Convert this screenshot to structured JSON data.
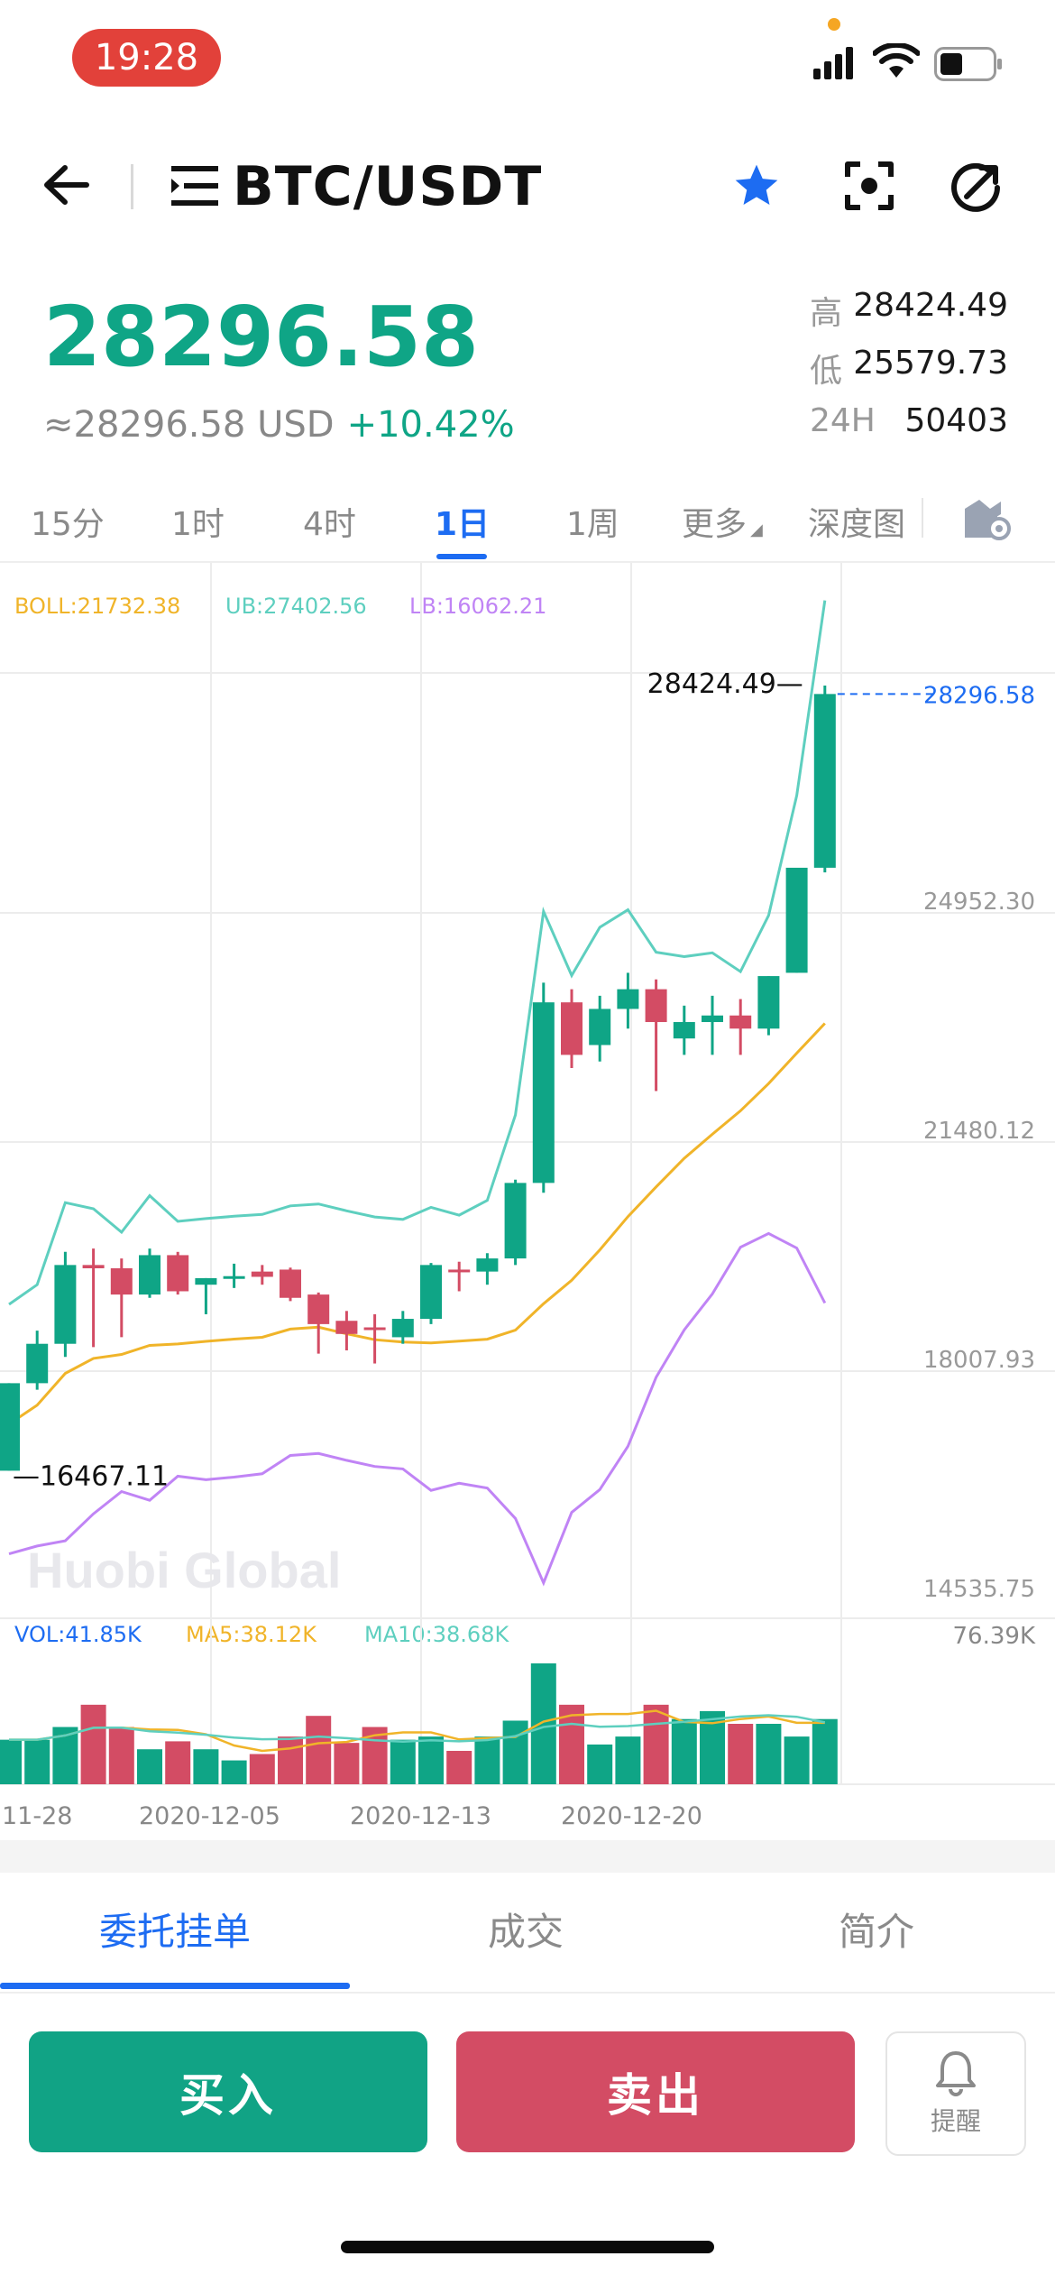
{
  "status_bar": {
    "time": "19:28"
  },
  "header": {
    "pair": "BTC/USDT"
  },
  "ticker": {
    "price": "28296.58",
    "usd_value": "≈28296.58 USD",
    "change": "+10.42%",
    "high_label": "高",
    "high": "28424.49",
    "low_label": "低",
    "low": "25579.73",
    "vol_label": "24H",
    "vol": "50403"
  },
  "timeframes": [
    {
      "label": "15分"
    },
    {
      "label": "1时"
    },
    {
      "label": "4时"
    },
    {
      "label": "1日"
    },
    {
      "label": "1周"
    },
    {
      "label": "更多"
    },
    {
      "label": "深度图"
    }
  ],
  "indicators": {
    "boll": "BOLL:21732.38",
    "ub": "UB:27402.56",
    "lb": "LB:16062.21",
    "vol": "VOL:41.85K",
    "ma5": "MA5:38.12K",
    "ma10": "MA10:38.68K"
  },
  "watermark": "Huobi Global",
  "colors": {
    "up": "#0fa586",
    "down": "#d34c64",
    "accent": "#1d6cf2",
    "boll": "#f0b429",
    "ub": "#5ecfbf",
    "lb": "#c084f5"
  },
  "chart_data": {
    "type": "candlestick",
    "y_axis_ticks": [
      "24952.30",
      "21480.12",
      "18007.93",
      "14535.75"
    ],
    "ylim": [
      14535.75,
      28424.49
    ],
    "max_label": "28424.49",
    "min_label": "16467.11",
    "last_price_label": "28296.58",
    "x_tick_labels": [
      "11-28",
      "2020-12-05",
      "2020-12-13",
      "2020-12-20"
    ],
    "vol_max_label": "76.39K",
    "candles": [
      {
        "o": 16467,
        "h": 17800,
        "l": 16467,
        "c": 17800
      },
      {
        "o": 17800,
        "h": 18600,
        "l": 17700,
        "c": 18400
      },
      {
        "o": 18400,
        "h": 19800,
        "l": 18200,
        "c": 19600
      },
      {
        "o": 19600,
        "h": 19850,
        "l": 18350,
        "c": 19550
      },
      {
        "o": 19550,
        "h": 19700,
        "l": 18500,
        "c": 19150
      },
      {
        "o": 19150,
        "h": 19850,
        "l": 19100,
        "c": 19750
      },
      {
        "o": 19750,
        "h": 19800,
        "l": 19150,
        "c": 19200
      },
      {
        "o": 19300,
        "h": 19400,
        "l": 18850,
        "c": 19400
      },
      {
        "o": 19400,
        "h": 19620,
        "l": 19250,
        "c": 19430
      },
      {
        "o": 19500,
        "h": 19600,
        "l": 19300,
        "c": 19420
      },
      {
        "o": 19530,
        "h": 19560,
        "l": 19050,
        "c": 19100
      },
      {
        "o": 19150,
        "h": 19180,
        "l": 18250,
        "c": 18700
      },
      {
        "o": 18750,
        "h": 18900,
        "l": 18300,
        "c": 18550
      },
      {
        "o": 18650,
        "h": 18850,
        "l": 18100,
        "c": 18620
      },
      {
        "o": 18500,
        "h": 18900,
        "l": 18400,
        "c": 18780
      },
      {
        "o": 18780,
        "h": 19630,
        "l": 18700,
        "c": 19600
      },
      {
        "o": 19530,
        "h": 19650,
        "l": 19200,
        "c": 19500
      },
      {
        "o": 19500,
        "h": 19780,
        "l": 19300,
        "c": 19700
      },
      {
        "o": 19700,
        "h": 20900,
        "l": 19600,
        "c": 20850
      },
      {
        "o": 20850,
        "h": 23900,
        "l": 20700,
        "c": 23600
      },
      {
        "o": 23600,
        "h": 23800,
        "l": 22600,
        "c": 22800
      },
      {
        "o": 22950,
        "h": 23700,
        "l": 22700,
        "c": 23500
      },
      {
        "o": 23500,
        "h": 24050,
        "l": 23200,
        "c": 23800
      },
      {
        "o": 23800,
        "h": 23950,
        "l": 22250,
        "c": 23300
      },
      {
        "o": 23050,
        "h": 23550,
        "l": 22800,
        "c": 23300
      },
      {
        "o": 23300,
        "h": 23700,
        "l": 22800,
        "c": 23400
      },
      {
        "o": 23400,
        "h": 23650,
        "l": 22800,
        "c": 23200
      },
      {
        "o": 23200,
        "h": 24000,
        "l": 23100,
        "c": 24000
      },
      {
        "o": 24050,
        "h": 25650,
        "l": 24050,
        "c": 25650
      },
      {
        "o": 25650,
        "h": 28424,
        "l": 25579,
        "c": 28296
      }
    ],
    "volumes": [
      28,
      28,
      36,
      50,
      36,
      22,
      27,
      22,
      15,
      19,
      30,
      43,
      26,
      36,
      28,
      30,
      21,
      30,
      40,
      76,
      50,
      25,
      30,
      50,
      41,
      46,
      38,
      38,
      30,
      41
    ]
  }
}
